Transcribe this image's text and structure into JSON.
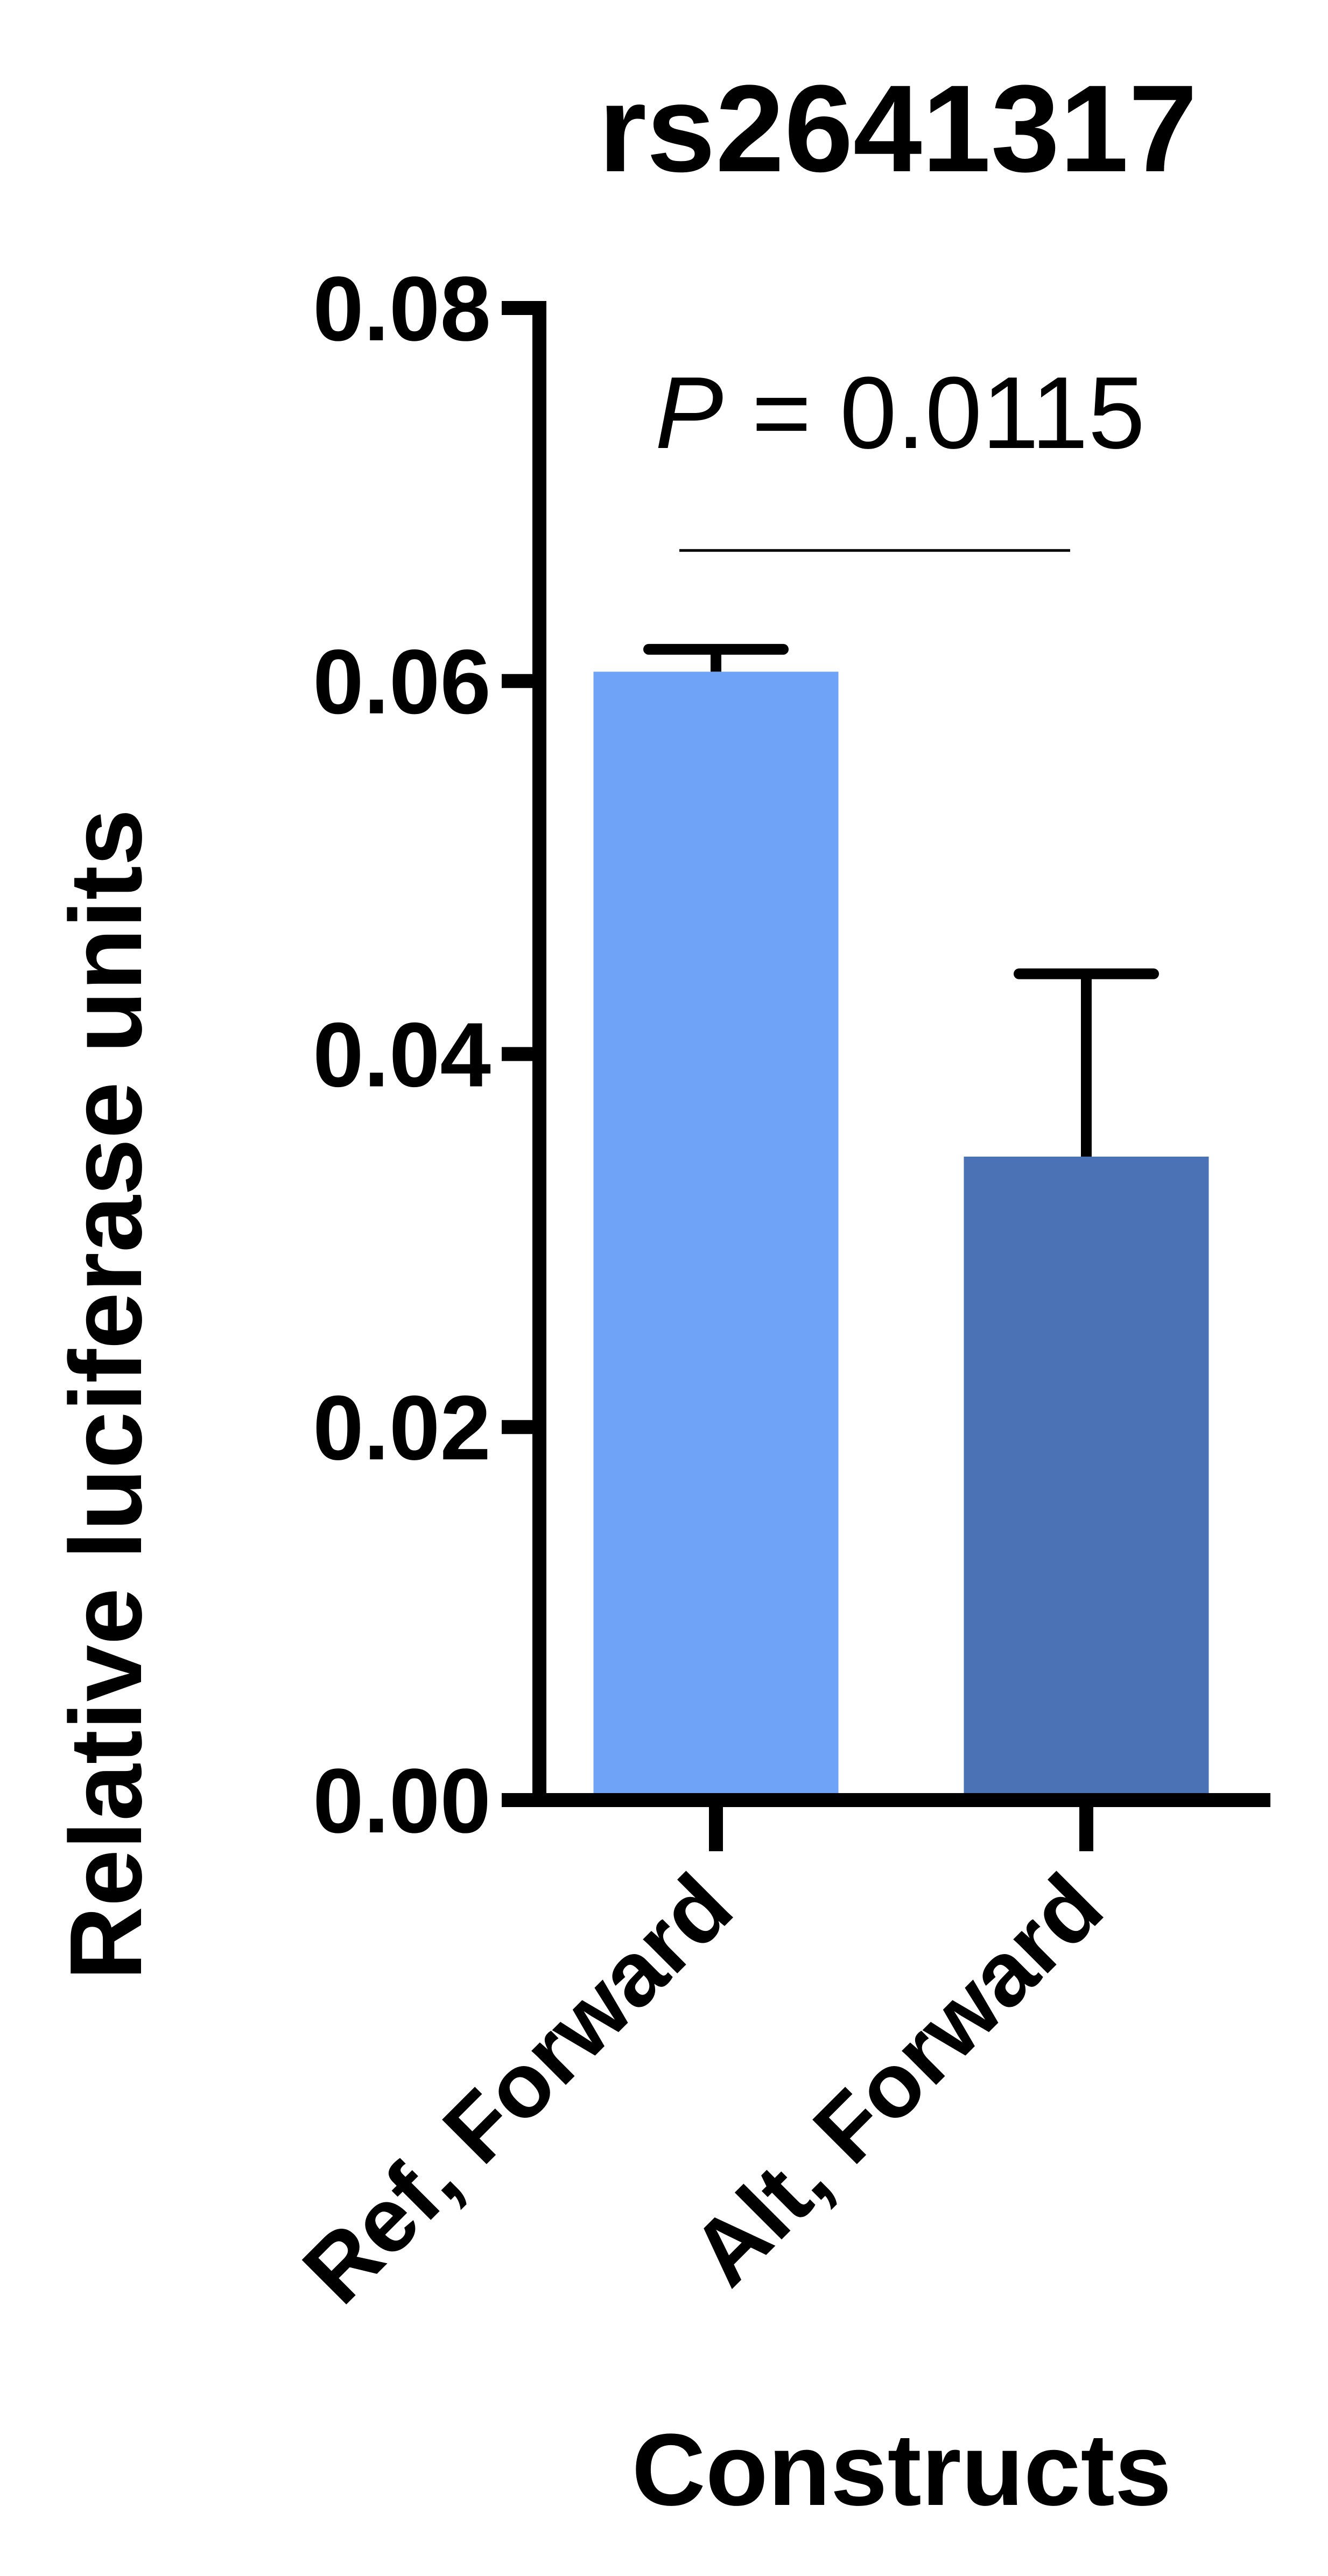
{
  "chart_data": {
    "type": "bar",
    "title": "rs2641317",
    "categories": [
      "Ref, Forward",
      "Alt, Forward"
    ],
    "values": [
      0.0605,
      0.0345
    ],
    "error_upper": [
      0.0617,
      0.0443
    ],
    "colors": [
      "#6fa3f8",
      "#4a72b4"
    ],
    "xlabel": "Constructs",
    "ylabel": "Relative luciferase units",
    "ylim": [
      0,
      0.08
    ],
    "yticks": [
      "0.00",
      "0.02",
      "0.04",
      "0.06",
      "0.08"
    ],
    "annotation": {
      "p_label": "P",
      "p_rest": " = 0.0115",
      "bracket_value": 0.067
    },
    "grid": false,
    "legend": "none"
  }
}
